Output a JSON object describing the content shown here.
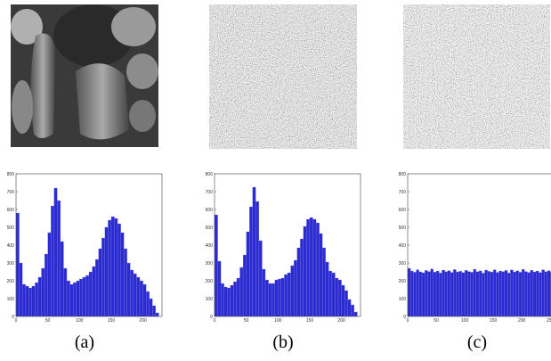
{
  "chart_data": [
    {
      "type": "histogram",
      "caption": "(a)",
      "color": "#2b2bd0",
      "bins": [
        0,
        5,
        10,
        15,
        20,
        25,
        30,
        35,
        40,
        45,
        50,
        55,
        60,
        65,
        70,
        75,
        80,
        85,
        90,
        95,
        100,
        105,
        110,
        115,
        120,
        125,
        130,
        135,
        140,
        145,
        150,
        155,
        160,
        165,
        170,
        175,
        180,
        185,
        190,
        195,
        200,
        205,
        210,
        215,
        220,
        225
      ],
      "counts": [
        580,
        300,
        180,
        170,
        160,
        170,
        190,
        220,
        270,
        350,
        470,
        620,
        720,
        650,
        420,
        270,
        200,
        180,
        190,
        200,
        210,
        220,
        230,
        250,
        280,
        320,
        380,
        440,
        500,
        540,
        560,
        550,
        520,
        470,
        380,
        300,
        260,
        240,
        220,
        200,
        180,
        140,
        100,
        60,
        20
      ],
      "xlim": [
        0,
        230
      ],
      "ylim": [
        0,
        800
      ],
      "xticks": [
        0,
        50,
        100,
        150,
        200
      ],
      "yticks": [
        0,
        100,
        200,
        300,
        400,
        500,
        600,
        700,
        800
      ]
    },
    {
      "type": "histogram",
      "caption": "(b)",
      "color": "#2b2bd0",
      "bins": [
        0,
        5,
        10,
        15,
        20,
        25,
        30,
        35,
        40,
        45,
        50,
        55,
        60,
        65,
        70,
        75,
        80,
        85,
        90,
        95,
        100,
        105,
        110,
        115,
        120,
        125,
        130,
        135,
        140,
        145,
        150,
        155,
        160,
        165,
        170,
        175,
        180,
        185,
        190,
        195,
        200,
        205,
        210,
        215,
        220,
        225
      ],
      "counts": [
        570,
        310,
        185,
        165,
        160,
        175,
        195,
        215,
        275,
        345,
        475,
        615,
        725,
        645,
        425,
        265,
        205,
        185,
        185,
        205,
        210,
        215,
        235,
        245,
        285,
        315,
        385,
        435,
        505,
        545,
        555,
        545,
        525,
        465,
        385,
        305,
        255,
        245,
        215,
        205,
        175,
        145,
        95,
        65,
        25
      ],
      "xlim": [
        0,
        230
      ],
      "ylim": [
        0,
        800
      ],
      "xticks": [
        0,
        50,
        100,
        150,
        200
      ],
      "yticks": [
        0,
        100,
        200,
        300,
        400,
        500,
        600,
        700,
        800
      ]
    },
    {
      "type": "histogram",
      "caption": "(c)",
      "color": "#2b2bd0",
      "bins": [
        0,
        5,
        10,
        15,
        20,
        25,
        30,
        35,
        40,
        45,
        50,
        55,
        60,
        65,
        70,
        75,
        80,
        85,
        90,
        95,
        100,
        105,
        110,
        115,
        120,
        125,
        130,
        135,
        140,
        145,
        150,
        155,
        160,
        165,
        170,
        175,
        180,
        185,
        190,
        195,
        200,
        205,
        210,
        215,
        220,
        225,
        230,
        235,
        240,
        245,
        250,
        255
      ],
      "counts": [
        270,
        255,
        248,
        262,
        250,
        245,
        258,
        252,
        266,
        249,
        255,
        244,
        260,
        251,
        257,
        247,
        263,
        250,
        254,
        246,
        259,
        252,
        248,
        265,
        251,
        256,
        243,
        260,
        253,
        249,
        262,
        247,
        255,
        251,
        258,
        244,
        261,
        250,
        256,
        248,
        264,
        252,
        247,
        259,
        250,
        255,
        246,
        262,
        251,
        257,
        249
      ],
      "xlim": [
        0,
        256
      ],
      "ylim": [
        0,
        800
      ],
      "xticks": [
        0,
        50,
        100,
        150,
        200,
        250
      ],
      "yticks": [
        0,
        100,
        200,
        300,
        400,
        500,
        600,
        700,
        800
      ]
    }
  ]
}
